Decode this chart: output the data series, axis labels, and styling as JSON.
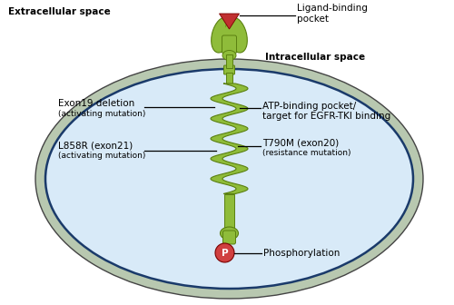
{
  "background_color": "#ffffff",
  "extracellular_label": "Extracellular space",
  "intracellular_label": "Intracellular space",
  "ligand_binding_label": "Ligand-binding\npocket",
  "phosphorylation_label": "Phosphorylation",
  "exon19_label": "Exon19 deletion\n(activating mutation)",
  "l858r_label": "L858R (exon21)\n(activating mutation)",
  "atp_label": "ATP-binding pocket/\ntarget for EGFR-TKI binding",
  "t790m_label": "T790M (exon20)\n(resistance mutation)",
  "light_green": "#8fbc3a",
  "mid_green": "#7aaa28",
  "dark_green": "#5a8010",
  "cell_fill": "#d8eaf8",
  "cell_edge_outer": "#222222",
  "cell_edge_inner": "#1a3a6a",
  "membrane_gray": "#b8c8b0",
  "red_triangle": "#c03030",
  "phospho_red": "#d04040"
}
